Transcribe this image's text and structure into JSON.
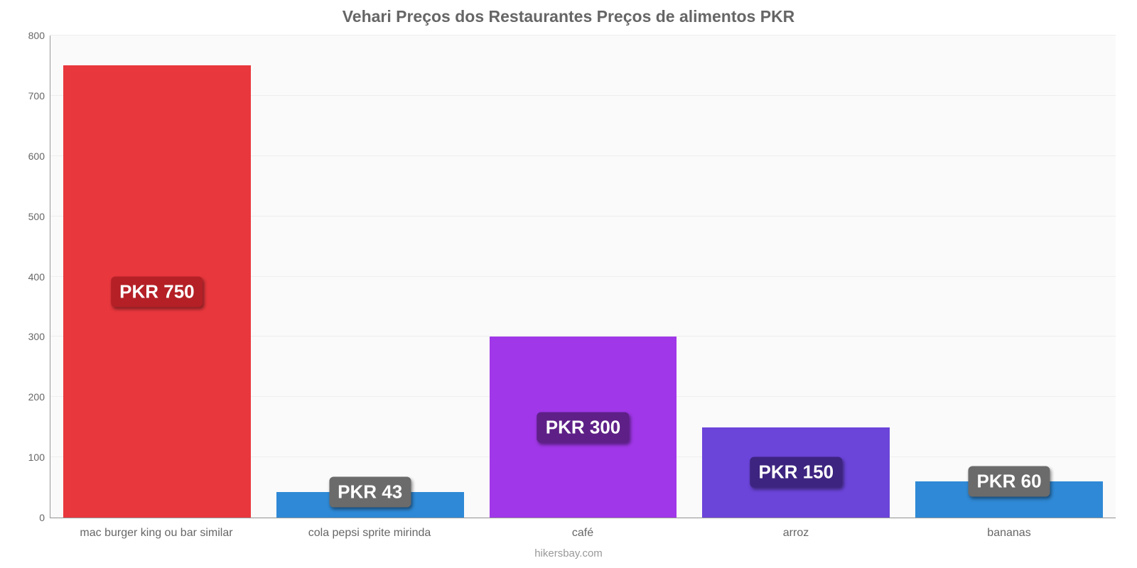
{
  "chart": {
    "type": "bar",
    "title": "Vehari Preços dos Restaurantes Preços de alimentos PKR",
    "title_color": "#666666",
    "title_fontsize": 23,
    "background_color": "#ffffff",
    "plot_background": "#fafafa",
    "grid_color": "#eeeeee",
    "axis_color": "#999999",
    "footer": "hikersbay.com",
    "footer_color": "#999999",
    "ylim": [
      0,
      800
    ],
    "ytick_step": 100,
    "yticks": [
      0,
      100,
      200,
      300,
      400,
      500,
      600,
      700,
      800
    ],
    "label_fontsize": 16,
    "tick_fontsize": 14,
    "value_label_fontsize": 26,
    "bar_width_pct": 88,
    "categories": [
      "mac burger king ou bar similar",
      "cola pepsi sprite mirinda",
      "café",
      "arroz",
      "bananas"
    ],
    "values": [
      750,
      43,
      300,
      150,
      60
    ],
    "value_labels": [
      "PKR 750",
      "PKR 43",
      "PKR 300",
      "PKR 150",
      "PKR 60"
    ],
    "bar_colors": [
      "#e8373d",
      "#2f89d6",
      "#a037e8",
      "#6b44d9",
      "#2f89d6"
    ],
    "value_label_bg": [
      "#b42026",
      "#6b6b6b",
      "#5e2087",
      "#3d2480",
      "#6b6b6b"
    ],
    "value_label_text_color": "#ffffff"
  }
}
